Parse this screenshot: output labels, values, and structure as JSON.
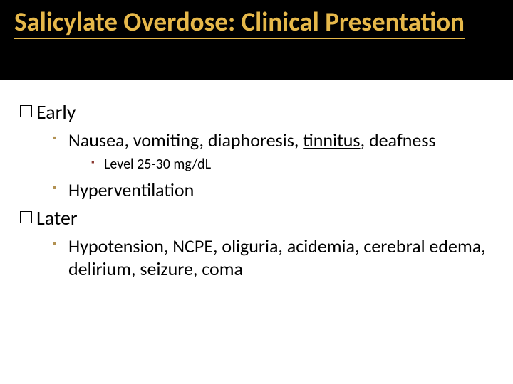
{
  "slide": {
    "title": "Salicylate Overdose: Clinical Presentation",
    "sections": [
      {
        "heading": "Early",
        "items": [
          {
            "prefix": "Nausea, vomiting, diaphoresis, ",
            "underlined": "tinnitus",
            "suffix": ", deafness",
            "sub": "Level 25-30 mg/dL"
          },
          {
            "prefix": "Hyperventilation",
            "underlined": "",
            "suffix": ""
          }
        ]
      },
      {
        "heading": "Later",
        "items": [
          {
            "prefix": "Hypotension, NCPE, oliguria, acidemia, cerebral edema, delirium, seizure, coma",
            "underlined": "",
            "suffix": ""
          }
        ]
      }
    ]
  },
  "style": {
    "title_color": "#e6b84a",
    "header_bg": "#000000",
    "bullet2_color": "#b29152",
    "bullet3_color": "#8a3830",
    "title_fontsize": 37,
    "level1_fontsize": 28,
    "level2_fontsize": 26,
    "level3_fontsize": 20
  }
}
